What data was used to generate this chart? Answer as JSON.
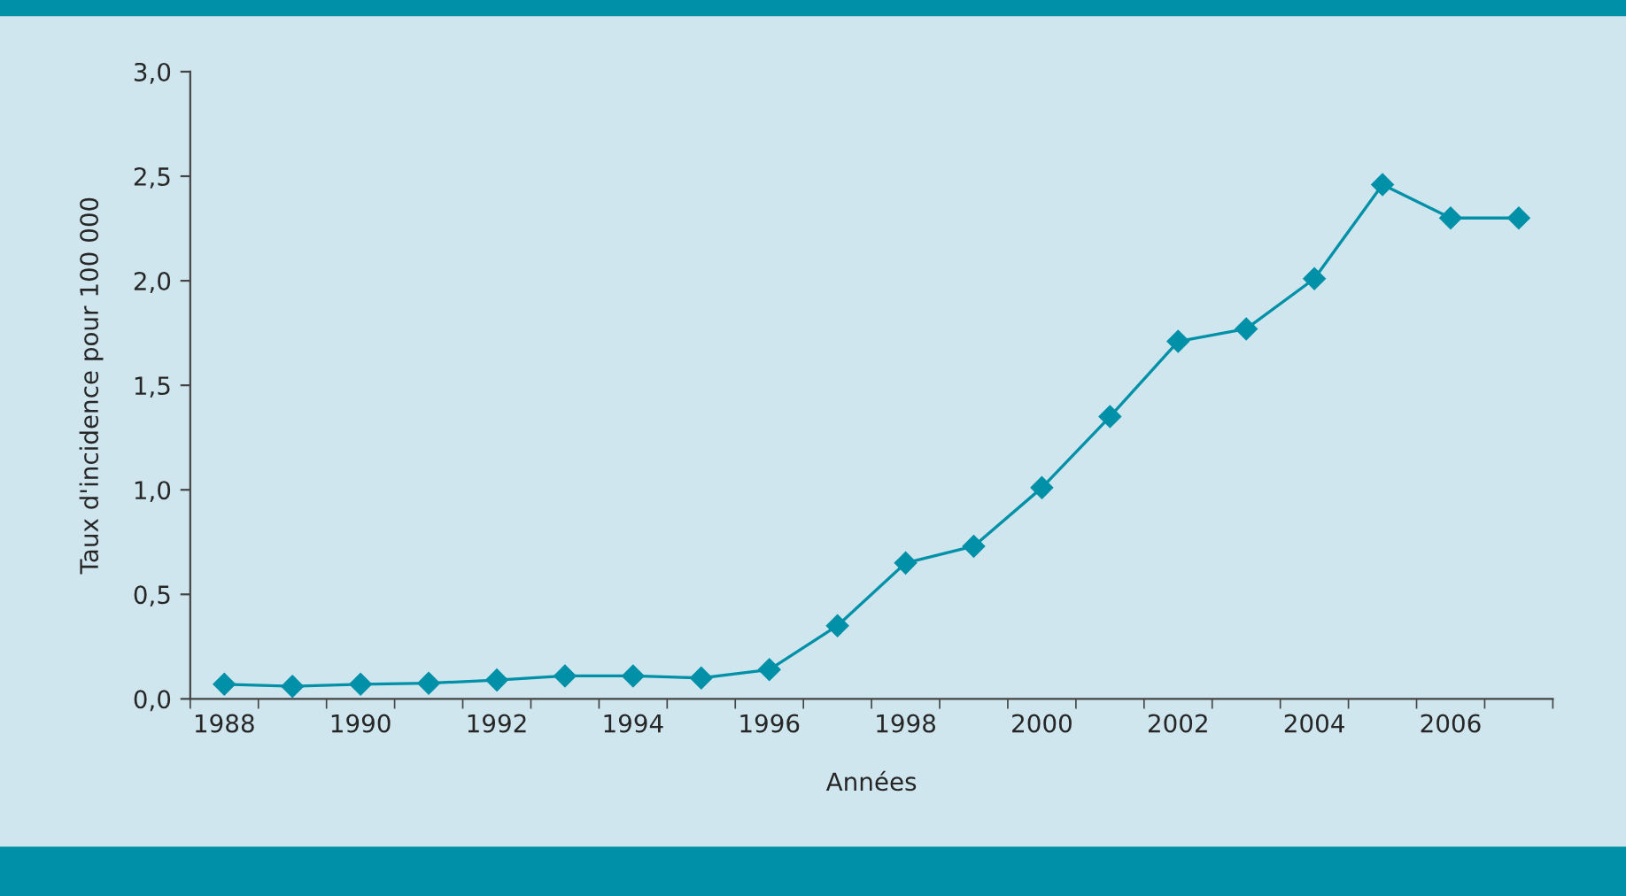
{
  "chart_data": {
    "type": "line",
    "xlabel": "Années",
    "ylabel": "Taux d'incidence pour 100 000",
    "categories": [
      "1988",
      null,
      "1990",
      null,
      "1992",
      null,
      "1994",
      null,
      "1996",
      null,
      "1998",
      null,
      "2000",
      null,
      "2002",
      null,
      "2004",
      null,
      "2006",
      null
    ],
    "series": [
      {
        "color": "#0090a8",
        "values": [
          0.07,
          0.06,
          0.07,
          0.075,
          0.09,
          0.11,
          0.11,
          0.1,
          0.14,
          0.35,
          0.65,
          0.73,
          1.01,
          1.35,
          1.71,
          1.77,
          2.01,
          2.46,
          2.3,
          2.3
        ]
      }
    ],
    "ylim": [
      0,
      3
    ],
    "yticks": [
      {
        "value": 0,
        "label": "0,0"
      },
      {
        "value": 0.5,
        "label": "0,5"
      },
      {
        "value": 1,
        "label": "1,0"
      },
      {
        "value": 1.5,
        "label": "1,5"
      },
      {
        "value": 2,
        "label": "2,0"
      },
      {
        "value": 2.5,
        "label": "2,5"
      },
      {
        "value": 3,
        "label": "3,0"
      }
    ],
    "grid": false,
    "legend": false,
    "marker": "diamond",
    "line_style": "solid"
  }
}
